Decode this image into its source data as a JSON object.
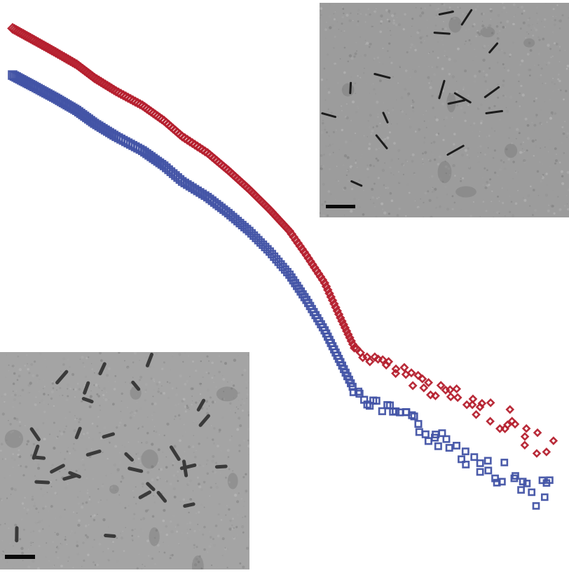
{
  "chart_data": {
    "type": "scatter",
    "title": "",
    "xlabel": "",
    "ylabel": "",
    "xscale": "log",
    "yscale": "log",
    "axes_visible": false,
    "grid": false,
    "legend": "none",
    "xlim": [
      0.005,
      0.5
    ],
    "ylim": [
      0.0001,
      10000
    ],
    "series": [
      {
        "marker": "diamond",
        "color": "#b5202e",
        "x": [
          0.005,
          0.006,
          0.0072,
          0.0086,
          0.01,
          0.012,
          0.015,
          0.018,
          0.021,
          0.026,
          0.031,
          0.037,
          0.044,
          0.052,
          0.06,
          0.07,
          0.08,
          0.09,
          0.1,
          0.11,
          0.13,
          0.15,
          0.17,
          0.2,
          0.23,
          0.27,
          0.31,
          0.36,
          0.42,
          0.48
        ],
        "y": [
          5000,
          3400,
          2300,
          1550,
          1000,
          650,
          410,
          250,
          150,
          88,
          50,
          27,
          14,
          7.0,
          3.2,
          1.3,
          0.42,
          0.16,
          0.115,
          0.1,
          0.078,
          0.06,
          0.047,
          0.036,
          0.028,
          0.021,
          0.016,
          0.012,
          0.0095,
          0.0075
        ]
      },
      {
        "marker": "square",
        "color": "#4253a5",
        "x": [
          0.005,
          0.006,
          0.0072,
          0.0086,
          0.01,
          0.012,
          0.015,
          0.018,
          0.021,
          0.026,
          0.031,
          0.037,
          0.044,
          0.052,
          0.06,
          0.07,
          0.08,
          0.09,
          0.1,
          0.11,
          0.13,
          0.15,
          0.17,
          0.2,
          0.23,
          0.27,
          0.31,
          0.36,
          0.42,
          0.48
        ],
        "y": [
          1100,
          760,
          520,
          350,
          230,
          150,
          95,
          58,
          35,
          21,
          12.5,
          7.0,
          3.6,
          1.7,
          0.75,
          0.28,
          0.1,
          0.04,
          0.028,
          0.024,
          0.019,
          0.014,
          0.01,
          0.0072,
          0.0052,
          0.0038,
          0.0028,
          0.0021,
          0.0016,
          0.0012
        ]
      }
    ]
  },
  "insets": [
    {
      "scale_bar": true
    },
    {
      "scale_bar": true
    }
  ]
}
